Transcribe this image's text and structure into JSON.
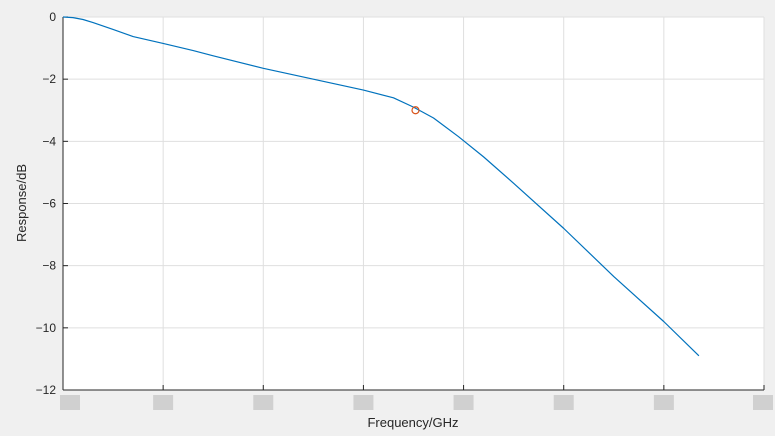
{
  "chart_data": {
    "type": "line",
    "title": "",
    "xlabel": "Frequency/GHz",
    "ylabel": "Response/dB",
    "ylim": [
      -12,
      0
    ],
    "yticks": [
      0,
      -2,
      -4,
      -6,
      -8,
      -10,
      -12
    ],
    "ytick_labels": [
      "0",
      "−2",
      "−4",
      "−6",
      "−8",
      "−10",
      "−12"
    ],
    "xlim": [
      0,
      7
    ],
    "xticks": [
      0,
      1,
      2,
      3,
      4,
      5,
      6,
      7
    ],
    "xtick_labels_obscured": true,
    "grid": true,
    "series": [
      {
        "color": "#0072bd",
        "x": [
          0.0,
          0.1,
          0.2,
          0.3,
          0.5,
          0.7,
          1.0,
          1.3,
          1.5,
          2.0,
          2.5,
          3.0,
          3.3,
          3.5,
          3.7,
          3.95,
          4.2,
          4.5,
          5.0,
          5.5,
          6.0,
          6.35
        ],
        "y": [
          0.0,
          -0.02,
          -0.08,
          -0.18,
          -0.4,
          -0.63,
          -0.85,
          -1.08,
          -1.25,
          -1.65,
          -2.0,
          -2.35,
          -2.6,
          -2.9,
          -3.25,
          -3.85,
          -4.5,
          -5.35,
          -6.8,
          -8.35,
          -9.8,
          -10.9
        ]
      }
    ],
    "marker": {
      "x": 3.52,
      "y": -3.0,
      "shape": "circle",
      "color": "#d95319"
    }
  }
}
